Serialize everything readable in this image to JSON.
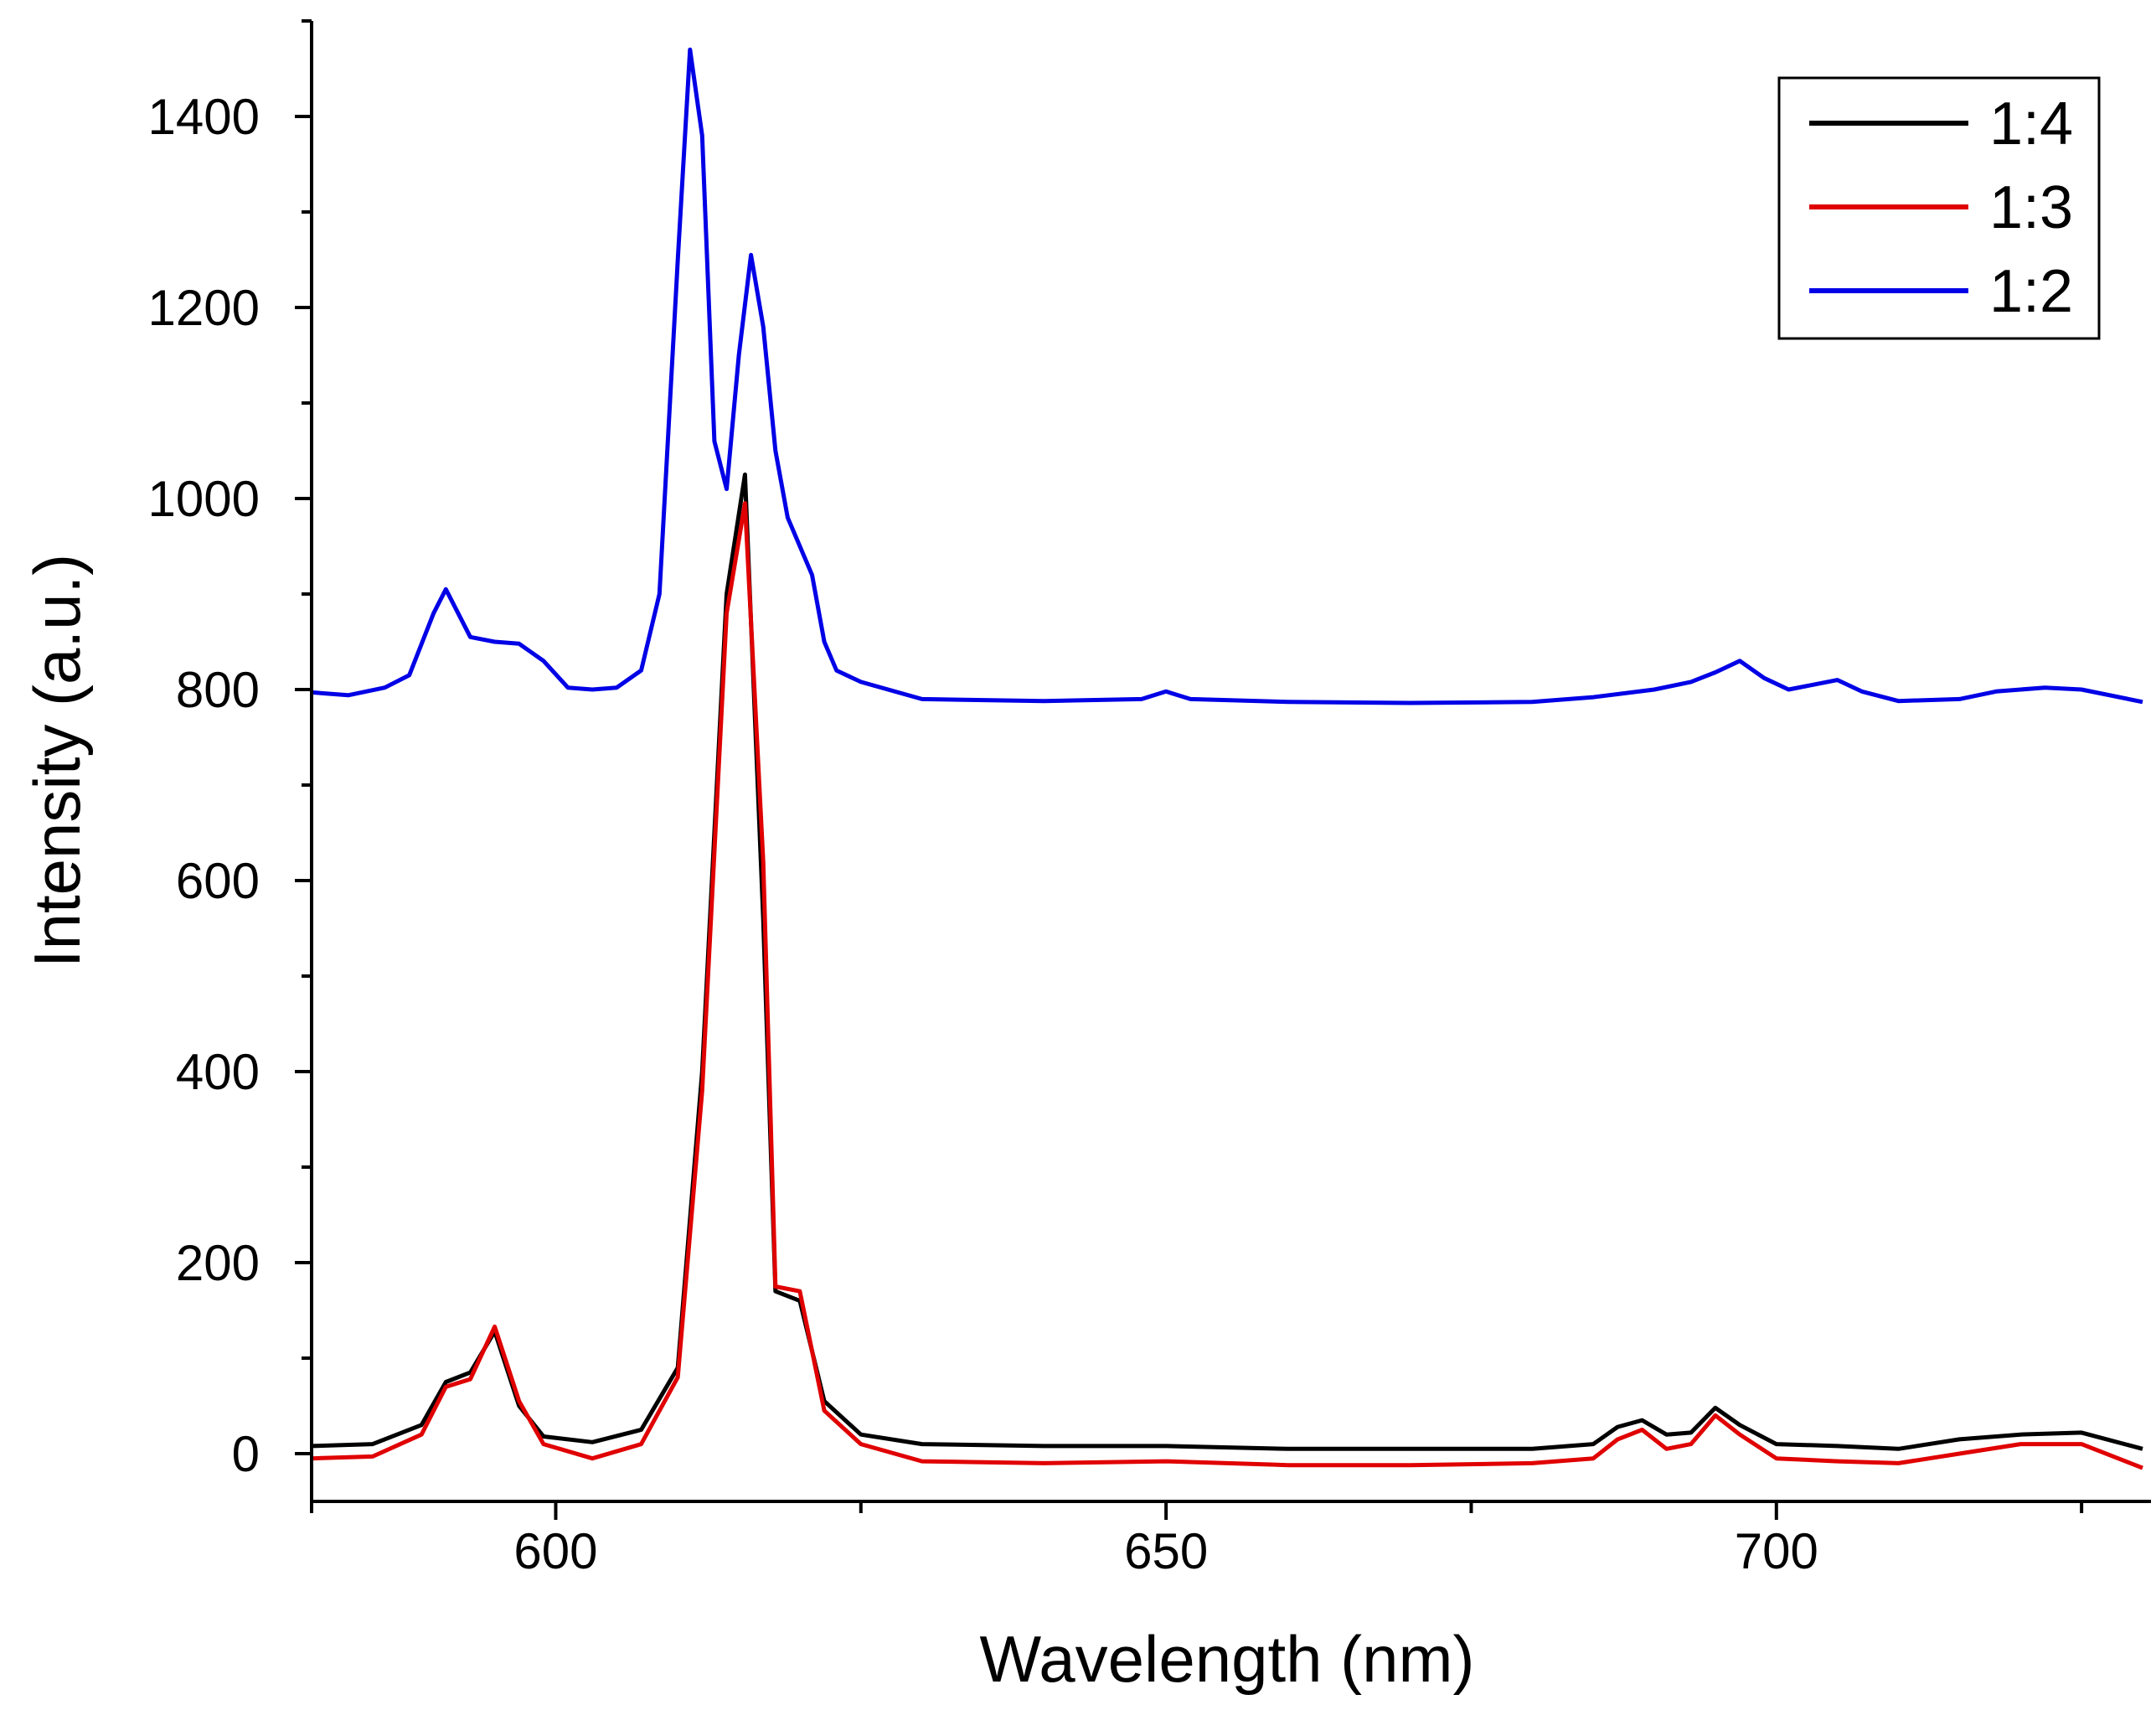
{
  "chart_data": {
    "type": "line",
    "title": "",
    "xlabel": "Wavelength (nm)",
    "ylabel": "Intensity (a.u.)",
    "xlim": [
      580,
      730
    ],
    "ylim": [
      -50,
      1500
    ],
    "x_ticks": [
      600,
      650,
      700
    ],
    "x_tick_labels": [
      "600",
      "650",
      "700"
    ],
    "x_minor_ticks": [
      580,
      625,
      675,
      725
    ],
    "y_ticks": [
      0,
      200,
      400,
      600,
      800,
      1000,
      1200,
      1400
    ],
    "y_tick_labels": [
      "0",
      "200",
      "400",
      "600",
      "800",
      "1000",
      "1200",
      "1400"
    ],
    "y_minor_ticks": [
      100,
      300,
      500,
      700,
      900,
      1100,
      1300,
      1500
    ],
    "legend_position": "top-right",
    "series": [
      {
        "name": "1:4",
        "color": "#000000",
        "points": [
          [
            580,
            8
          ],
          [
            585,
            10
          ],
          [
            589,
            30
          ],
          [
            591,
            75
          ],
          [
            593,
            85
          ],
          [
            595,
            128
          ],
          [
            597,
            50
          ],
          [
            599,
            18
          ],
          [
            603,
            12
          ],
          [
            607,
            25
          ],
          [
            610,
            90
          ],
          [
            612,
            400
          ],
          [
            614,
            900
          ],
          [
            615.5,
            1025
          ],
          [
            617,
            560
          ],
          [
            618,
            170
          ],
          [
            620,
            160
          ],
          [
            622,
            55
          ],
          [
            625,
            20
          ],
          [
            630,
            10
          ],
          [
            640,
            8
          ],
          [
            650,
            8
          ],
          [
            660,
            5
          ],
          [
            670,
            5
          ],
          [
            680,
            5
          ],
          [
            685,
            10
          ],
          [
            687,
            28
          ],
          [
            689,
            35
          ],
          [
            691,
            20
          ],
          [
            693,
            22
          ],
          [
            695,
            48
          ],
          [
            697,
            30
          ],
          [
            700,
            10
          ],
          [
            705,
            8
          ],
          [
            710,
            5
          ],
          [
            715,
            15
          ],
          [
            720,
            20
          ],
          [
            725,
            22
          ],
          [
            730,
            5
          ]
        ]
      },
      {
        "name": "1:3",
        "color": "#e00000",
        "points": [
          [
            580,
            -5
          ],
          [
            585,
            -3
          ],
          [
            589,
            20
          ],
          [
            591,
            70
          ],
          [
            593,
            78
          ],
          [
            595,
            133
          ],
          [
            597,
            55
          ],
          [
            599,
            10
          ],
          [
            603,
            -5
          ],
          [
            607,
            10
          ],
          [
            610,
            80
          ],
          [
            612,
            380
          ],
          [
            614,
            880
          ],
          [
            615.5,
            995
          ],
          [
            617,
            620
          ],
          [
            618,
            175
          ],
          [
            620,
            170
          ],
          [
            622,
            45
          ],
          [
            625,
            10
          ],
          [
            630,
            -8
          ],
          [
            640,
            -10
          ],
          [
            650,
            -8
          ],
          [
            660,
            -12
          ],
          [
            670,
            -12
          ],
          [
            680,
            -10
          ],
          [
            685,
            -5
          ],
          [
            687,
            15
          ],
          [
            689,
            25
          ],
          [
            691,
            5
          ],
          [
            693,
            10
          ],
          [
            695,
            40
          ],
          [
            697,
            20
          ],
          [
            700,
            -5
          ],
          [
            705,
            -8
          ],
          [
            710,
            -10
          ],
          [
            715,
            0
          ],
          [
            720,
            10
          ],
          [
            725,
            10
          ],
          [
            730,
            -15
          ]
        ]
      },
      {
        "name": "1:2",
        "color": "#0000e6",
        "points": [
          [
            580,
            797
          ],
          [
            583,
            794
          ],
          [
            586,
            802
          ],
          [
            588,
            815
          ],
          [
            590,
            880
          ],
          [
            591,
            905
          ],
          [
            593,
            855
          ],
          [
            595,
            850
          ],
          [
            597,
            848
          ],
          [
            599,
            830
          ],
          [
            601,
            802
          ],
          [
            603,
            800
          ],
          [
            605,
            802
          ],
          [
            607,
            820
          ],
          [
            608.5,
            900
          ],
          [
            610,
            1250
          ],
          [
            611,
            1470
          ],
          [
            612,
            1380
          ],
          [
            613,
            1060
          ],
          [
            614,
            1010
          ],
          [
            615,
            1150
          ],
          [
            616,
            1255
          ],
          [
            617,
            1180
          ],
          [
            618,
            1050
          ],
          [
            619,
            980
          ],
          [
            621,
            920
          ],
          [
            622,
            850
          ],
          [
            623,
            820
          ],
          [
            625,
            808
          ],
          [
            630,
            790
          ],
          [
            640,
            788
          ],
          [
            648,
            790
          ],
          [
            650,
            798
          ],
          [
            652,
            790
          ],
          [
            660,
            787
          ],
          [
            670,
            786
          ],
          [
            680,
            787
          ],
          [
            685,
            792
          ],
          [
            690,
            800
          ],
          [
            693,
            808
          ],
          [
            695,
            818
          ],
          [
            697,
            830
          ],
          [
            699,
            812
          ],
          [
            701,
            800
          ],
          [
            703,
            805
          ],
          [
            705,
            810
          ],
          [
            707,
            798
          ],
          [
            710,
            788
          ],
          [
            715,
            790
          ],
          [
            718,
            798
          ],
          [
            722,
            802
          ],
          [
            725,
            800
          ],
          [
            730,
            787
          ]
        ]
      }
    ]
  }
}
